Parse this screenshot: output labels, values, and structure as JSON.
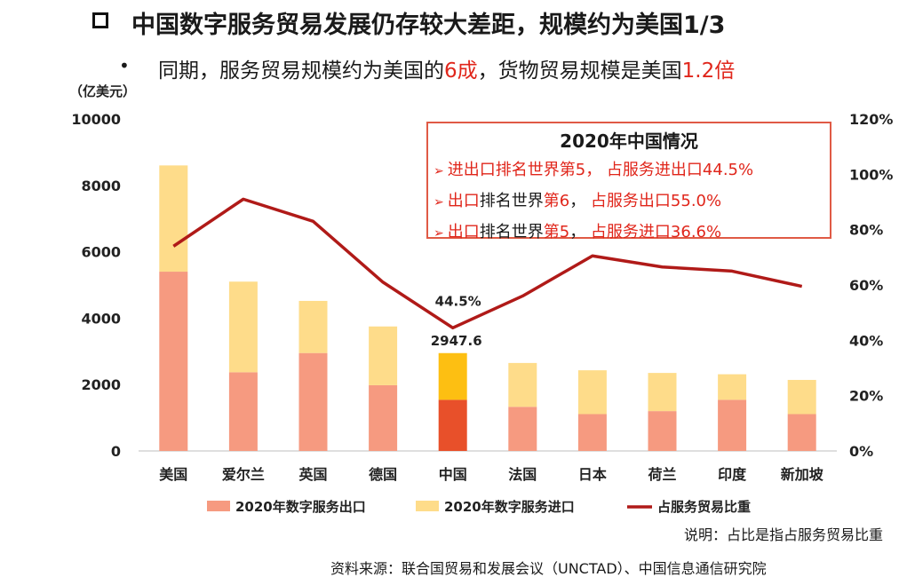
{
  "header": {
    "title": "中国数字服务贸易发展仍存较大差距，规模约为美国1/3",
    "bullet": "•",
    "subtitle_parts": [
      "同期，服务贸易规模约为美国的",
      "6成",
      "，货物贸易规模是美国",
      "1.2倍"
    ]
  },
  "info_box": {
    "title": "2020年中国情况",
    "lines": [
      {
        "arrow": "➢",
        "pre": "进出口排名世界",
        "rank": "第5",
        "mid": "，  ",
        "tail": "占服务进出口44.5%"
      },
      {
        "arrow": "➢",
        "pre": "出口",
        "pre2": "排名世界",
        "rank": "第6",
        "mid": "，  ",
        "tail": "占服务出口55.0%"
      },
      {
        "arrow": "➢",
        "pre": "出口",
        "pre2": "排名世界",
        "rank": "第5",
        "mid": "，  ",
        "tail": "占服务进口36.6%"
      }
    ]
  },
  "footer": {
    "note": "说明：占比是指占服务贸易比重",
    "source": "资料来源：联合国贸易和发展会议（UNCTAD）、中国信息通信研究院"
  },
  "colors": {
    "export": "#f69a80",
    "import": "#fedc8a",
    "china_export": "#e8502a",
    "china_import": "#fdbf12",
    "line": "#b01a18",
    "red_text": "#e0261b"
  },
  "chart_data": {
    "type": "bar",
    "stacked": true,
    "y_unit_label": "（亿美元）",
    "categories": [
      "美国",
      "爱尔兰",
      "英国",
      "德国",
      "中国",
      "法国",
      "日本",
      "荷兰",
      "印度",
      "新加坡"
    ],
    "series": [
      {
        "name": "2020年数字服务出口",
        "values": [
          5400,
          2370,
          2950,
          1980,
          1540,
          1330,
          1110,
          1200,
          1540,
          1110
        ]
      },
      {
        "name": "2020年数字服务进口",
        "values": [
          3200,
          2730,
          1570,
          1770,
          1407.6,
          1320,
          1320,
          1150,
          770,
          1030
        ]
      },
      {
        "name": "占服务贸易比重",
        "axis": "right",
        "type": "line",
        "values": [
          74,
          91,
          83,
          61,
          44.5,
          56,
          70.5,
          66.5,
          65,
          59.5
        ]
      }
    ],
    "ylim": [
      0,
      10000
    ],
    "yticks": [
      0,
      2000,
      4000,
      6000,
      8000,
      10000
    ],
    "y2lim": [
      0,
      120
    ],
    "y2ticks": [
      "0%",
      "20%",
      "40%",
      "60%",
      "80%",
      "100%",
      "120%"
    ],
    "annotations": [
      {
        "category": "中国",
        "label": "44.5%"
      },
      {
        "category": "中国",
        "label": "2947.6"
      }
    ],
    "legend": [
      "2020年数字服务出口",
      "2020年数字服务进口",
      "占服务贸易比重"
    ],
    "legend_position": "bottom"
  }
}
